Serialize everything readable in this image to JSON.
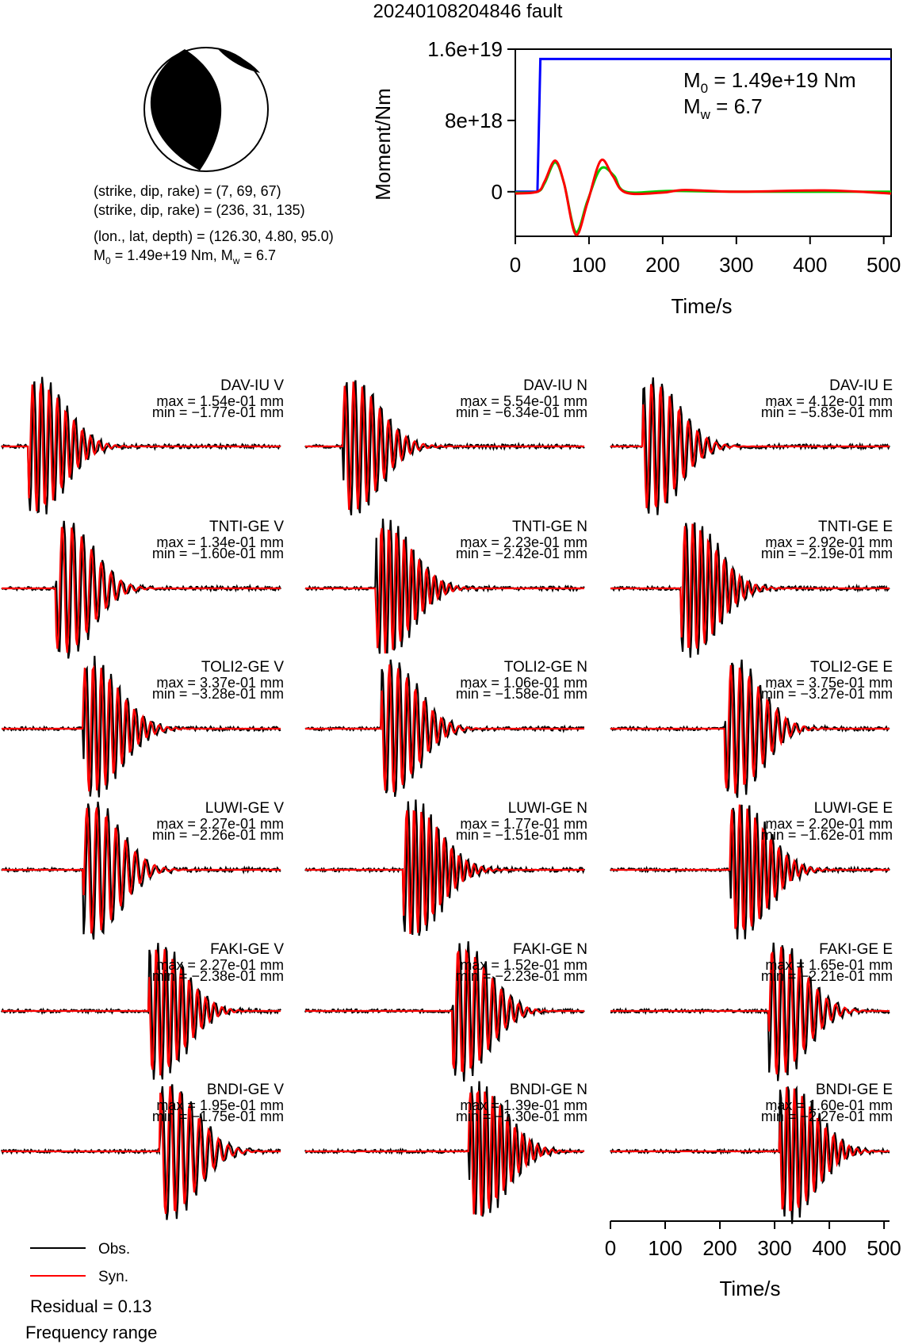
{
  "title": "20240108204846 fault",
  "beachball": {
    "planes": [
      "(strike, dip, rake) = (7, 69, 67)",
      "(strike, dip, rake) = (236, 31, 135)"
    ],
    "location": "(lon., lat, depth) = (126.30, 4.80, 95.0)",
    "moment_line_prefix": "M",
    "moment_line_sub": "0",
    "moment_line_mid": " = 1.49e+19 Nm, M",
    "moment_line_sub2": "w",
    "moment_line_end": " = 6.7"
  },
  "moment_chart": {
    "ylabel": "Moment/Nm",
    "xlabel": "Time/s",
    "yticks": [
      "1.6e+19",
      "8e+18",
      "0"
    ],
    "xticks": [
      "0",
      "100",
      "200",
      "300",
      "400",
      "500"
    ],
    "m0_label": "M",
    "m0_sub": "0",
    "m0_value": " = 1.49e+19 Nm",
    "mw_label": "M",
    "mw_sub": "w",
    "mw_value": " = 6.7",
    "colors": {
      "cumulative": "#0000ff",
      "stf_a": "#ff0000",
      "stf_b": "#00cc00"
    }
  },
  "legend": {
    "obs": "Obs.",
    "syn": "Syn.",
    "residual": "Residual = 0.13",
    "freq": "Frequency range"
  },
  "wave_axis": {
    "xlabel": "Time/s",
    "xticks": [
      "0",
      "100",
      "200",
      "300",
      "400",
      "500"
    ]
  },
  "chart_data": [
    {
      "type": "line",
      "title": "",
      "xlabel": "Time/s",
      "ylabel": "Moment/Nm",
      "xlim": [
        0,
        510
      ],
      "ylim": [
        -5e+18,
        1.6e+19
      ],
      "series": [
        {
          "values": [
            [
              0,
              0
            ],
            [
              30,
              0
            ],
            [
              34,
              1.49e+19
            ],
            [
              510,
              1.49e+19
            ]
          ]
        },
        {
          "values": [
            [
              0,
              -2e+17
            ],
            [
              30,
              0
            ],
            [
              40,
              1.2e+18
            ],
            [
              54,
              3.5e+18
            ],
            [
              66,
              1e+18
            ],
            [
              82,
              -4.8e+18
            ],
            [
              98,
              -1.2e+18
            ],
            [
              116,
              3.5e+18
            ],
            [
              132,
              1.8e+18
            ],
            [
              150,
              -1e+17
            ],
            [
              200,
              -1e+17
            ],
            [
              230,
              2e+17
            ],
            [
              300,
              0
            ],
            [
              420,
              1.5e+17
            ],
            [
              510,
              -2e+17
            ]
          ]
        },
        {
          "values": [
            [
              0,
              -1e+17
            ],
            [
              30,
              0
            ],
            [
              40,
              1e+18
            ],
            [
              54,
              3.3e+18
            ],
            [
              66,
              1e+18
            ],
            [
              82,
              -4.5e+18
            ],
            [
              98,
              -1e+18
            ],
            [
              116,
              2.6e+18
            ],
            [
              134,
              1.8e+18
            ],
            [
              150,
              0
            ],
            [
              210,
              1e+17
            ],
            [
              300,
              0
            ],
            [
              510,
              0
            ]
          ]
        }
      ]
    },
    {
      "type": "line",
      "xlabel": "Time/s",
      "xlim": [
        0,
        510
      ],
      "series": [
        {
          "name": "Obs."
        },
        {
          "name": "Syn."
        }
      ],
      "panels": [
        {
          "station": "DAV-IU V",
          "max": "max = 1.54e-01 mm",
          "min": "min = −1.77e-01 mm",
          "seed": 1,
          "t0": 70
        },
        {
          "station": "DAV-IU N",
          "max": "max = 5.54e-01 mm",
          "min": "min = −6.34e-01 mm",
          "seed": 2,
          "t0": 90
        },
        {
          "station": "DAV-IU E",
          "max": "max = 4.12e-01 mm",
          "min": "min = −5.83e-01 mm",
          "seed": 3,
          "t0": 80
        },
        {
          "station": "TNTI-GE V",
          "max": "max = 1.34e-01 mm",
          "min": "min = −1.60e-01 mm",
          "seed": 4,
          "t0": 120
        },
        {
          "station": "TNTI-GE N",
          "max": "max = 2.23e-01 mm",
          "min": "min = −2.42e-01 mm",
          "seed": 5,
          "t0": 150
        },
        {
          "station": "TNTI-GE E",
          "max": "max = 2.92e-01 mm",
          "min": "min = −2.19e-01 mm",
          "seed": 6,
          "t0": 150
        },
        {
          "station": "TOLI2-GE V",
          "max": "max = 3.37e-01 mm",
          "min": "min = −3.28e-01 mm",
          "seed": 7,
          "t0": 170
        },
        {
          "station": "TOLI2-GE N",
          "max": "max = 1.06e-01 mm",
          "min": "min = −1.58e-01 mm",
          "seed": 8,
          "t0": 160
        },
        {
          "station": "TOLI2-GE E",
          "max": "max = 3.75e-01 mm",
          "min": "min = −3.27e-01 mm",
          "seed": 9,
          "t0": 230
        },
        {
          "station": "LUWI-GE V",
          "max": "max = 2.27e-01 mm",
          "min": "min = −2.26e-01 mm",
          "seed": 10,
          "t0": 170
        },
        {
          "station": "LUWI-GE N",
          "max": "max = 1.77e-01 mm",
          "min": "min = −1.51e-01 mm",
          "seed": 11,
          "t0": 200
        },
        {
          "station": "LUWI-GE E",
          "max": "max = 2.20e-01 mm",
          "min": "min = −1.62e-01 mm",
          "seed": 12,
          "t0": 240
        },
        {
          "station": "FAKI-GE V",
          "max": "max = 2.27e-01 mm",
          "min": "min = −2.38e-01 mm",
          "seed": 13,
          "t0": 290
        },
        {
          "station": "FAKI-GE N",
          "max": "max = 1.52e-01 mm",
          "min": "min = −2.23e-01 mm",
          "seed": 14,
          "t0": 290
        },
        {
          "station": "FAKI-GE E",
          "max": "max = 1.65e-01 mm",
          "min": "min = −2.21e-01 mm",
          "seed": 15,
          "t0": 310
        },
        {
          "station": "BNDI-GE V",
          "max": "max = 1.95e-01 mm",
          "min": "min = −1.75e-01 mm",
          "seed": 16,
          "t0": 310
        },
        {
          "station": "BNDI-GE N",
          "max": "max = 1.39e-01 mm",
          "min": "min = −1.30e-01 mm",
          "seed": 17,
          "t0": 320
        },
        {
          "station": "BNDI-GE E",
          "max": "max = 1.60e-01 mm",
          "min": "min = −2.27e-01 mm",
          "seed": 18,
          "t0": 330
        }
      ]
    }
  ]
}
